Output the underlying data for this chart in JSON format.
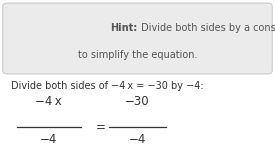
{
  "hint_bold": "Hint:",
  "hint_rest_line1": " Divide both sides by a constant",
  "hint_line2": "to simplify the equation.",
  "body_text": "Divide both sides of −4 x = −30 by −4:",
  "frac_left_num": "−4 x",
  "frac_left_den": "−4",
  "frac_right_num": "−30",
  "frac_right_den": "−4",
  "equals": "=",
  "box_bg": "#ebebeb",
  "box_border": "#cccccc",
  "text_color": "#333333",
  "bg_color": "#ffffff",
  "hint_color": "#555555"
}
